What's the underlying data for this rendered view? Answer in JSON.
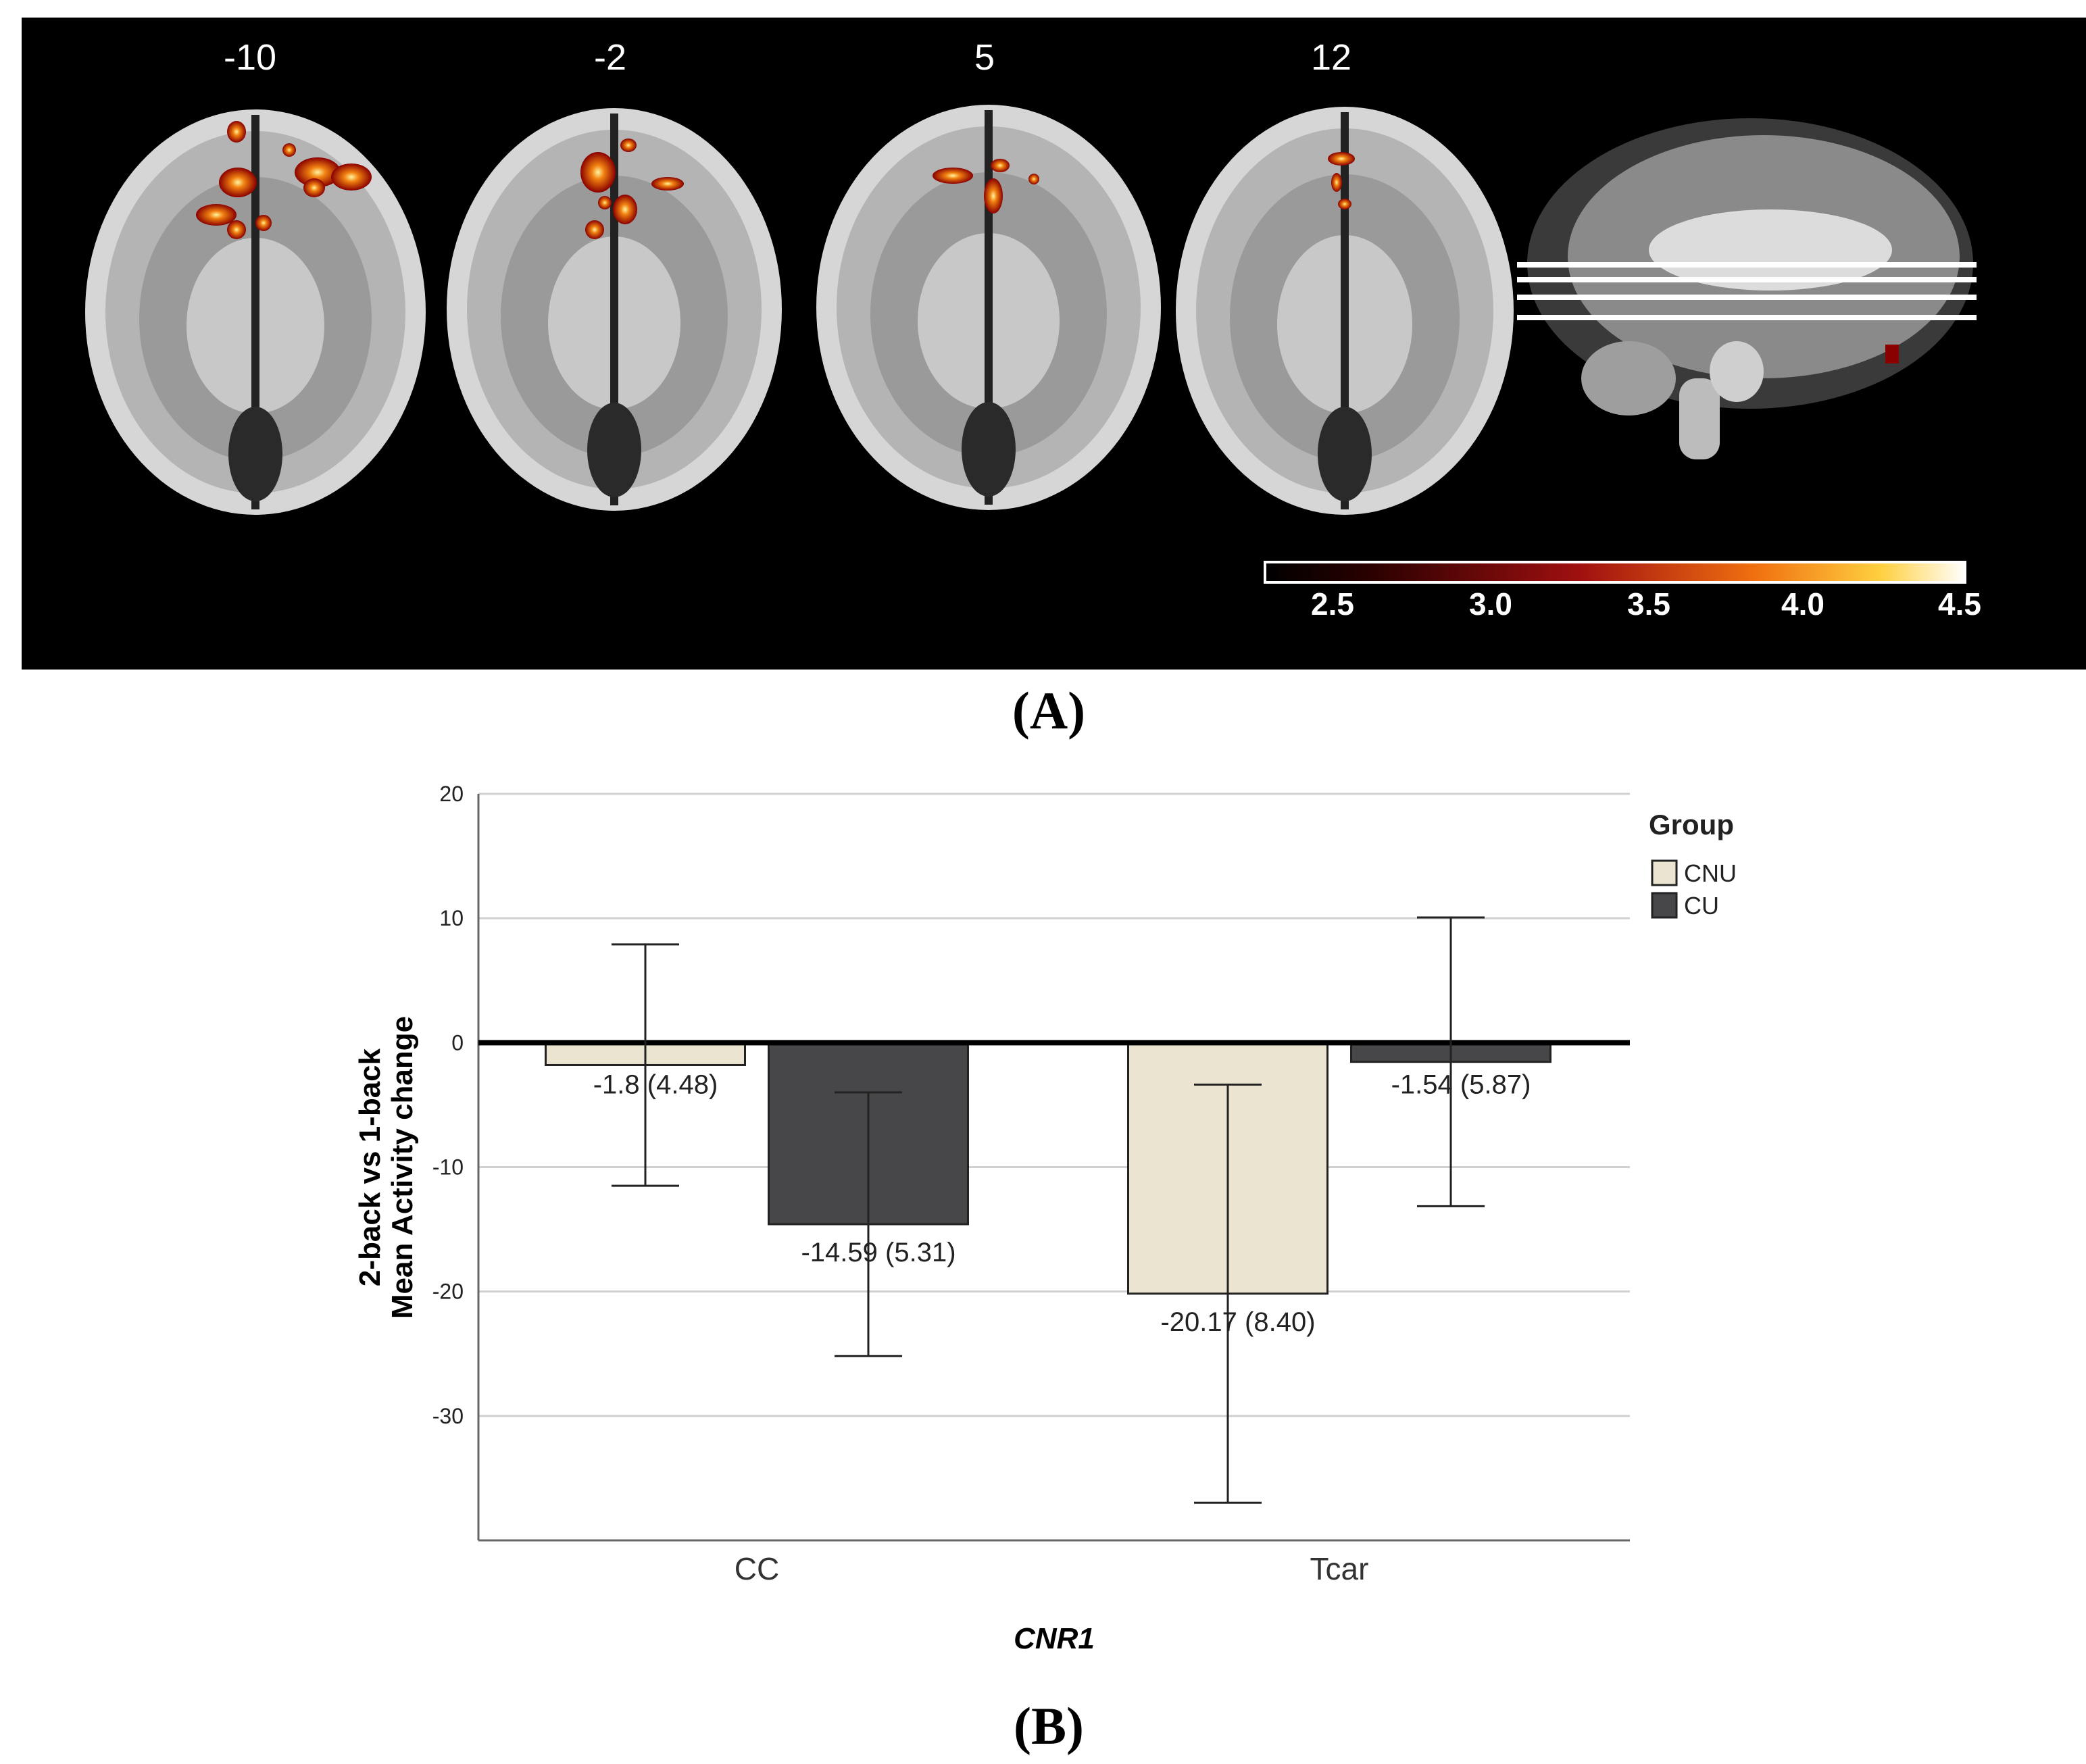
{
  "panel_a": {
    "label": "(A)",
    "slice_labels": [
      "-10",
      "-2",
      "5",
      "12"
    ],
    "colorbar": {
      "ticks": [
        "2.5",
        "3.0",
        "3.5",
        "4.0",
        "4.5"
      ],
      "range": [
        2.3,
        4.5
      ]
    }
  },
  "panel_b": {
    "label": "(B)"
  },
  "chart_data": {
    "type": "bar",
    "categories": [
      "CC",
      "Tcar"
    ],
    "series": [
      {
        "name": "CNU",
        "color": "#ebe4d0",
        "values": [
          -1.8,
          -20.17
        ],
        "errors": [
          9.7,
          16.8
        ],
        "labels": [
          "-1.8 (4.48)",
          "-20.17 (8.40)"
        ]
      },
      {
        "name": "CU",
        "color": "#47474a",
        "values": [
          -14.59,
          -1.54
        ],
        "errors": [
          10.6,
          11.6
        ],
        "labels": [
          "-14.59 (5.31)",
          "-1.54 (5.87)"
        ]
      }
    ],
    "xlabel": "CNR1",
    "ylabel_lines": [
      "2-back vs 1-back",
      "Mean Activity change"
    ],
    "yticks": [
      20,
      10,
      0,
      -10,
      -20,
      -30
    ],
    "ylim": [
      -40,
      20
    ],
    "legend_title": "Group",
    "legend_position": "right",
    "grid": true
  }
}
